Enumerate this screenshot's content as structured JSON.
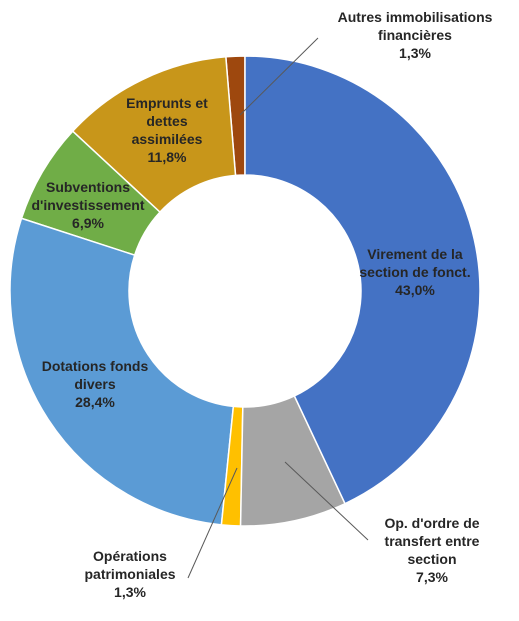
{
  "chart_data": {
    "type": "donut",
    "categories": [
      "Virement de la section de fonct.",
      "Op. d'ordre de transfert entre section",
      "Opérations patrimoniales",
      "Dotations fonds divers",
      "Subventions d'investissement",
      "Emprunts et dettes assimilées",
      "Autres immobilisations financières"
    ],
    "values": [
      43.0,
      7.3,
      1.3,
      28.4,
      6.9,
      11.8,
      1.3
    ],
    "value_labels": [
      "43,0%",
      "7,3%",
      "1,3%",
      "28,4%",
      "6,9%",
      "11,8%",
      "1,3%"
    ],
    "colors": [
      "#4472c4",
      "#a5a5a5",
      "#ffc000",
      "#5b9bd5",
      "#70ad47",
      "#c8961a",
      "#9e480e"
    ]
  }
}
